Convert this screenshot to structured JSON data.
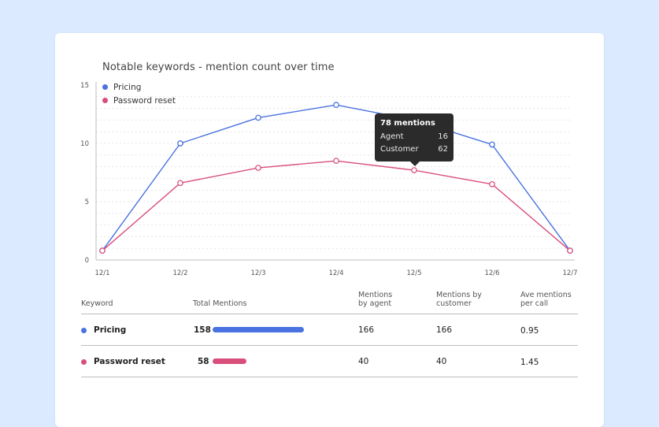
{
  "chart_data": {
    "type": "line",
    "title": "Notable keywords - mention count over time",
    "categories": [
      "12/1",
      "12/2",
      "12/3",
      "12/4",
      "12/5",
      "12/6",
      "12/7"
    ],
    "y_ticks": [
      "0",
      "5",
      "10",
      "15"
    ],
    "ylim": [
      0,
      15
    ],
    "grid": true,
    "legend_position": "top-left",
    "series": [
      {
        "name": "Pricing",
        "color": "#4a72e0",
        "values": [
          0.8,
          10,
          12.2,
          13.3,
          12.0,
          9.9,
          0.8
        ]
      },
      {
        "name": "Password reset",
        "color": "#d94f7c",
        "values": [
          0.8,
          6.6,
          7.9,
          8.5,
          7.7,
          6.5,
          0.8
        ]
      }
    ],
    "tooltip": {
      "category": "12/5",
      "title": "78 mentions",
      "rows": [
        {
          "label": "Agent",
          "value": "16"
        },
        {
          "label": "Customer",
          "value": "62"
        }
      ]
    }
  },
  "table": {
    "headers": {
      "keyword": "Keyword",
      "total": "Total Mentions",
      "by_agent_1": "Mentions",
      "by_agent_2": "by agent",
      "by_customer_1": "Mentions by",
      "by_customer_2": "customer",
      "ave_1": "Ave mentions",
      "ave_2": "per call"
    },
    "bar_max": 158,
    "rows": [
      {
        "keyword": "Pricing",
        "color": "#4a72e0",
        "total": "158",
        "total_value": 158,
        "by_agent": "166",
        "by_customer": "166",
        "ave": "0.95"
      },
      {
        "keyword": "Password reset",
        "color": "#d94f7c",
        "total": "58",
        "total_value": 58,
        "by_agent": "40",
        "by_customer": "40",
        "ave": "1.45"
      }
    ]
  }
}
